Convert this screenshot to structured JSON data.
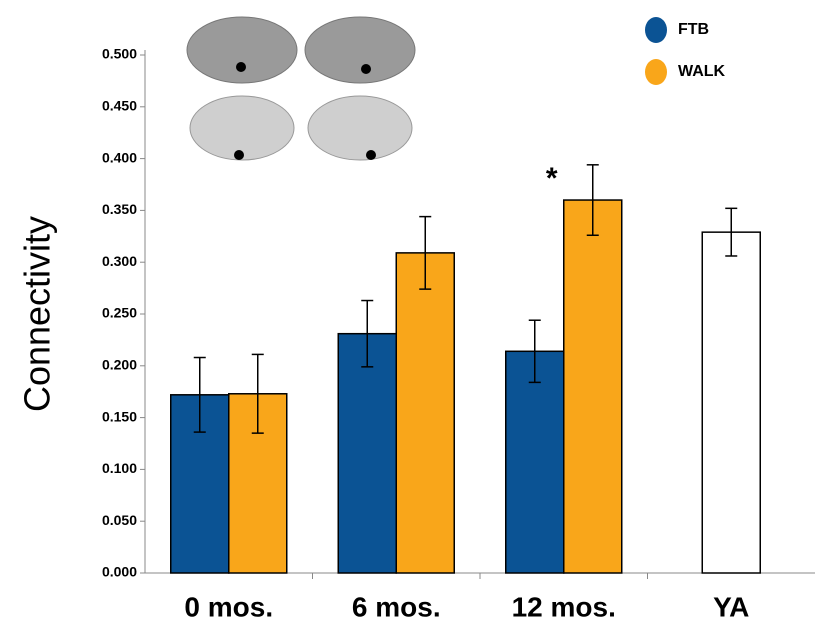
{
  "chart_data": {
    "type": "bar",
    "ylabel": "Connectivity",
    "categories": [
      "0 mos.",
      "6 mos.",
      "12 mos.",
      "YA"
    ],
    "series": [
      {
        "name": "FTB",
        "color": "#0b5394",
        "values": [
          0.172,
          0.231,
          0.214,
          null
        ],
        "errors": [
          0.036,
          0.032,
          0.03,
          null
        ]
      },
      {
        "name": "WALK",
        "color": "#f9a61a",
        "values": [
          0.173,
          0.309,
          0.36,
          null
        ],
        "errors": [
          0.038,
          0.035,
          0.034,
          null
        ]
      },
      {
        "color": "#ffffff",
        "values": [
          null,
          null,
          null,
          0.329
        ],
        "errors": [
          null,
          null,
          null,
          0.023
        ]
      }
    ],
    "annotations": [
      "*"
    ],
    "ylim": [
      0,
      0.5
    ],
    "yticks": [
      {
        "value": 0,
        "label": "0.000"
      },
      {
        "value": 0.05,
        "label": "0.050"
      },
      {
        "value": 0.1,
        "label": "0.100"
      },
      {
        "value": 0.15,
        "label": "0.150"
      },
      {
        "value": 0.2,
        "label": "0.200"
      },
      {
        "value": 0.25,
        "label": "0.250"
      },
      {
        "value": 0.3,
        "label": "0.300"
      },
      {
        "value": 0.35,
        "label": "0.350"
      },
      {
        "value": 0.4,
        "label": "0.400"
      },
      {
        "value": 0.45,
        "label": "0.450"
      },
      {
        "value": 0.5,
        "label": "0.500"
      }
    ],
    "grid": false,
    "legend": "top-right"
  }
}
